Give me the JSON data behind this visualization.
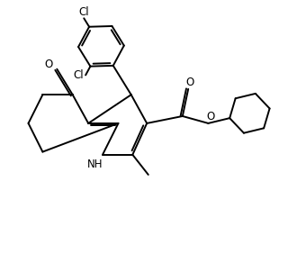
{
  "bg_color": "#ffffff",
  "line_color": "#000000",
  "line_width": 1.4,
  "font_size": 8.5,
  "fig_width": 3.2,
  "fig_height": 2.92,
  "xlim": [
    0,
    10
  ],
  "ylim": [
    0,
    9.125
  ]
}
